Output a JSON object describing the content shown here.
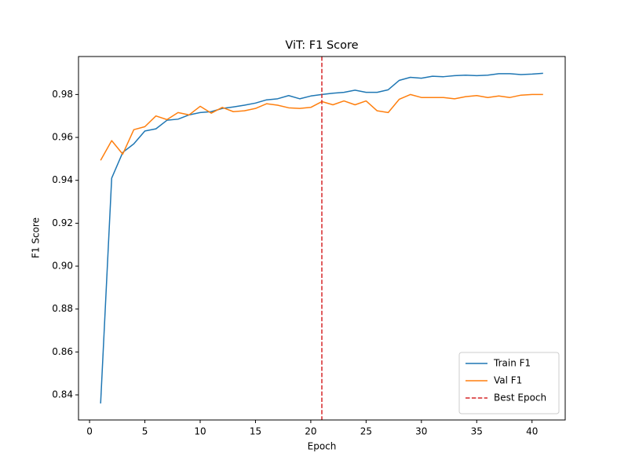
{
  "chart_data": {
    "type": "line",
    "title": "ViT: F1 Score",
    "x_label": "Epoch",
    "y_label": "F1 Score",
    "x": [
      1,
      2,
      3,
      4,
      5,
      6,
      7,
      8,
      9,
      10,
      11,
      12,
      13,
      14,
      15,
      16,
      17,
      18,
      19,
      20,
      21,
      22,
      23,
      24,
      25,
      26,
      27,
      28,
      29,
      30,
      31,
      32,
      33,
      34,
      35,
      36,
      37,
      38,
      39,
      40,
      41
    ],
    "series": [
      {
        "name": "Train F1",
        "color": "#1f77b4",
        "values": [
          0.836,
          0.941,
          0.953,
          0.957,
          0.963,
          0.964,
          0.968,
          0.9685,
          0.9705,
          0.9716,
          0.972,
          0.9735,
          0.9742,
          0.975,
          0.976,
          0.9775,
          0.978,
          0.9795,
          0.978,
          0.9793,
          0.98,
          0.9806,
          0.981,
          0.982,
          0.981,
          0.981,
          0.9822,
          0.9866,
          0.988,
          0.9876,
          0.9885,
          0.9883,
          0.9888,
          0.989,
          0.9888,
          0.989,
          0.9897,
          0.9897,
          0.9893,
          0.9895,
          0.9899
        ]
      },
      {
        "name": "Val F1",
        "color": "#ff7f0e",
        "values": [
          0.9493,
          0.9585,
          0.9522,
          0.9636,
          0.965,
          0.97,
          0.9683,
          0.9716,
          0.9705,
          0.9745,
          0.9713,
          0.974,
          0.972,
          0.9724,
          0.9735,
          0.9757,
          0.975,
          0.9738,
          0.9735,
          0.974,
          0.9767,
          0.9752,
          0.977,
          0.9752,
          0.977,
          0.9724,
          0.9716,
          0.9778,
          0.98,
          0.9786,
          0.9786,
          0.9786,
          0.978,
          0.979,
          0.9795,
          0.9786,
          0.9793,
          0.9786,
          0.9797,
          0.98,
          0.98
        ]
      }
    ],
    "vlines": [
      {
        "name": "Best Epoch",
        "x": 21,
        "color": "#d62728"
      }
    ],
    "xlim": [
      -1,
      43
    ],
    "ylim": [
      0.8283,
      0.9977
    ],
    "xticks": [
      0,
      5,
      10,
      15,
      20,
      25,
      30,
      35,
      40
    ],
    "yticks": [
      0.84,
      0.86,
      0.88,
      {
        "value": 0.9,
        "label": "0.90"
      },
      0.92,
      0.94,
      0.96,
      0.98
    ],
    "legend": "lower right"
  }
}
